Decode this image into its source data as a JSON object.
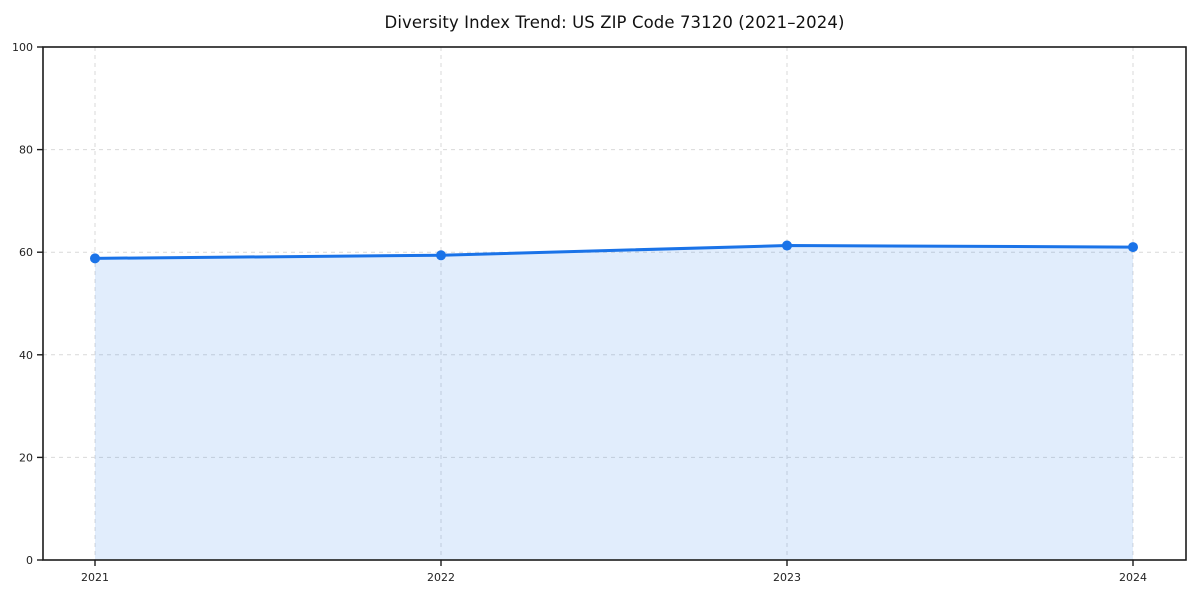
{
  "chart_data": {
    "type": "line",
    "title": "Diversity Index Trend: US ZIP Code 73120 (2021–2024)",
    "categories": [
      "2021",
      "2022",
      "2023",
      "2024"
    ],
    "values": [
      58.8,
      59.4,
      61.3,
      61.0
    ],
    "xlabel": "",
    "ylabel": "",
    "ylim": [
      0,
      100
    ],
    "yticks": [
      0,
      20,
      40,
      60,
      80,
      100
    ],
    "grid": "dashed, horizontal and vertical, light gray",
    "legend": "none",
    "area_fill": true,
    "marker": "circle",
    "line_color": "#1a73e8",
    "fill_color": "rgba(26,115,232,0.13)",
    "grid_color": "#d9d9d9",
    "axis_color": "#1c1c1c",
    "tick_label_color": "#222222"
  }
}
